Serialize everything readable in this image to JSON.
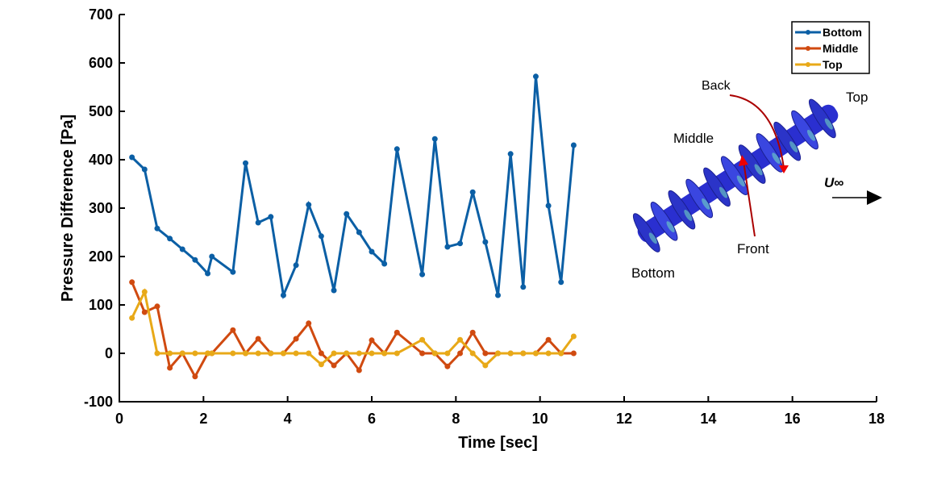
{
  "chart_data": {
    "type": "line",
    "xlabel": "Time [sec]",
    "ylabel": "Pressure Difference [Pa]",
    "xlim": [
      0,
      18
    ],
    "ylim": [
      -100,
      700
    ],
    "xticks": [
      0,
      2,
      4,
      6,
      8,
      10,
      12,
      14,
      16,
      18
    ],
    "yticks": [
      -100,
      0,
      100,
      200,
      300,
      400,
      500,
      600,
      700
    ],
    "grid": false,
    "legend_position": "top-right",
    "x": [
      0.3,
      0.6,
      0.9,
      1.2,
      1.5,
      1.8,
      2.1,
      2.2,
      2.7,
      3.0,
      3.3,
      3.6,
      3.9,
      4.2,
      4.5,
      4.8,
      5.1,
      5.4,
      5.7,
      6.0,
      6.3,
      6.6,
      7.2,
      7.5,
      7.8,
      8.1,
      8.4,
      8.7,
      9.0,
      9.3,
      9.6,
      9.9,
      10.2,
      10.5,
      10.8
    ],
    "series": [
      {
        "name": "Bottom",
        "color": "#0B5FA5",
        "values": [
          405,
          380,
          258,
          237,
          215,
          193,
          165,
          200,
          168,
          393,
          270,
          282,
          120,
          182,
          307,
          242,
          130,
          288,
          250,
          210,
          185,
          422,
          163,
          443,
          220,
          227,
          333,
          230,
          120,
          412,
          137,
          572,
          305,
          147,
          430
        ]
      },
      {
        "name": "Middle",
        "color": "#D04A10",
        "values": [
          147,
          85,
          97,
          -30,
          0,
          -48,
          0,
          0,
          48,
          0,
          30,
          0,
          0,
          30,
          62,
          0,
          -25,
          0,
          -35,
          27,
          0,
          43,
          0,
          0,
          -27,
          0,
          43,
          0,
          0,
          0,
          0,
          0,
          28,
          0,
          0
        ]
      },
      {
        "name": "Top",
        "color": "#E8A918",
        "values": [
          73,
          127,
          0,
          0,
          0,
          0,
          0,
          0,
          0,
          0,
          0,
          0,
          0,
          0,
          0,
          -23,
          0,
          0,
          0,
          0,
          0,
          0,
          28,
          0,
          0,
          28,
          0,
          -25,
          0,
          0,
          0,
          0,
          0,
          0,
          35
        ]
      }
    ],
    "annotations": [
      "Back",
      "Top",
      "Middle",
      "Front",
      "Bottom",
      "U∞"
    ]
  }
}
